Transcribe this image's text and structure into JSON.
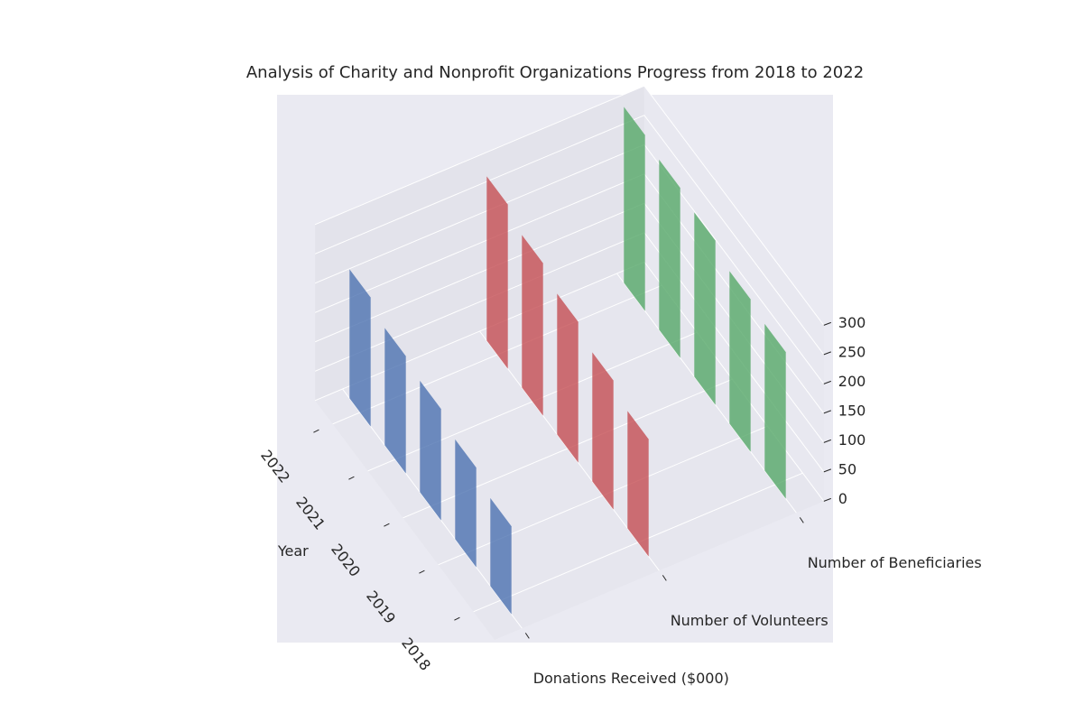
{
  "chart_data": {
    "type": "bar3d",
    "title": "Analysis of Charity and Nonprofit Organizations Progress from 2018 to 2022",
    "x_label": "Year",
    "categories": [
      "2018",
      "2019",
      "2020",
      "2021",
      "2022"
    ],
    "series": [
      {
        "name": "Donations Received ($000)",
        "color": "#4c72b0",
        "values": [
          150,
          170,
          190,
          200,
          220
        ]
      },
      {
        "name": "Number of Volunteers",
        "color": "#c44e52",
        "values": [
          200,
          220,
          240,
          260,
          280
        ]
      },
      {
        "name": "Number of Beneficiaries",
        "color": "#55a868",
        "values": [
          250,
          260,
          280,
          290,
          300
        ]
      }
    ],
    "zlim": [
      0,
      300
    ],
    "zticks": [
      0,
      50,
      100,
      150,
      200,
      250,
      300
    ],
    "grid": true
  }
}
